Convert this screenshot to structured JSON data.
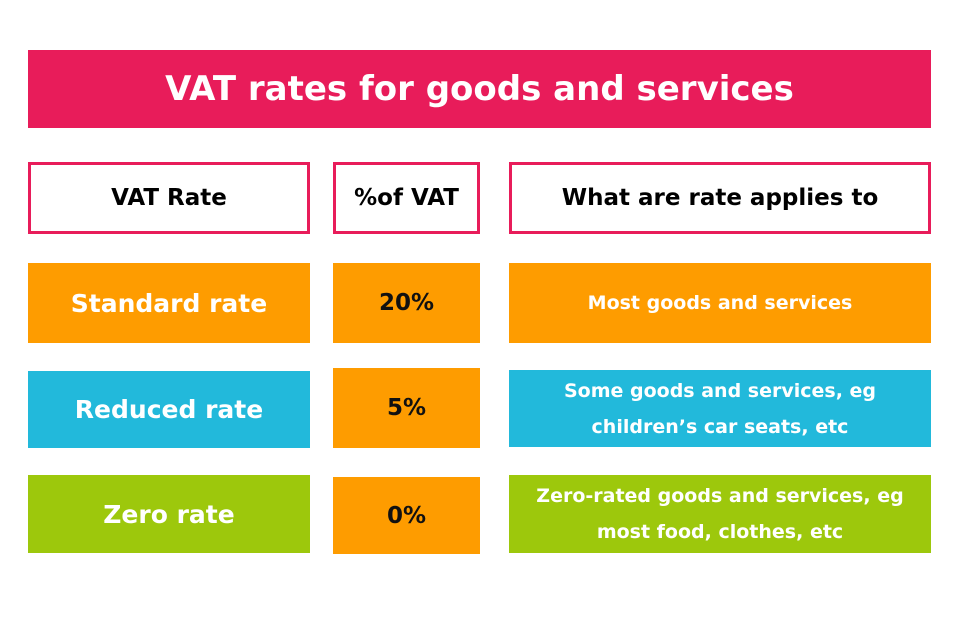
{
  "title": "VAT rates for goods and services",
  "headers": {
    "rate": "VAT Rate",
    "percent": "%of VAT",
    "applies": "What are rate applies to"
  },
  "rows": [
    {
      "name": "Standard rate",
      "percent": "20%",
      "applies": "Most goods and services",
      "color": "#fe9c00"
    },
    {
      "name": "Reduced rate",
      "percent": "5%",
      "applies": "Some goods and services, eg children’s car seats, etc",
      "color": "#22b9db"
    },
    {
      "name": "Zero rate",
      "percent": "0%",
      "applies": "Zero-rated goods and services, eg most food, clothes, etc",
      "color": "#9dc80c"
    }
  ],
  "colors": {
    "accent": "#e81c5a",
    "percent_box": "#fe9c00"
  }
}
